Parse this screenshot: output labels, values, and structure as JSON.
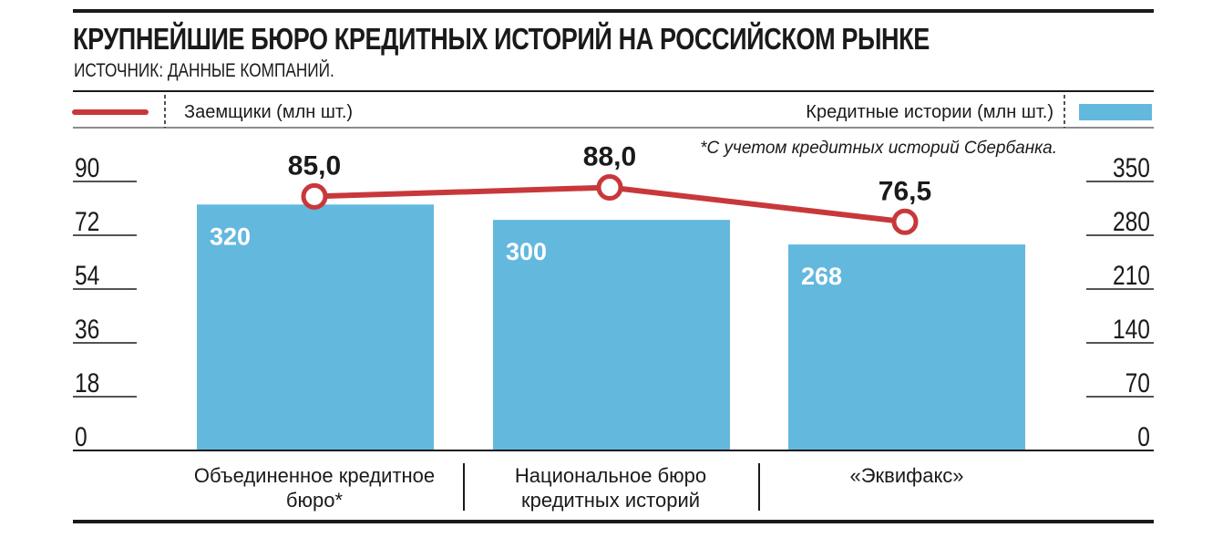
{
  "header": {
    "title": "КРУПНЕЙШИЕ БЮРО КРЕДИТНЫХ ИСТОРИЙ НА РОССИЙСКОМ РЫНКЕ",
    "subtitle": "ИСТОЧНИК: ДАННЫЕ КОМПАНИЙ."
  },
  "footnote": "*С учетом кредитных историй Сбербанка.",
  "colors": {
    "bar": "#63b8de",
    "line": "#c8383b",
    "ink": "#1a1a1a"
  },
  "chart_data": {
    "type": "bar",
    "categories": [
      "Объединенное кредитное бюро*",
      "Национальное бюро кредитных историй",
      "«Эквифакс»"
    ],
    "series": [
      {
        "name": "Кредитные истории (млн шт.)",
        "type": "bar",
        "axis": "right",
        "values": [
          320,
          300,
          268
        ],
        "labels": [
          "320",
          "300",
          "268"
        ]
      },
      {
        "name": "Заемщики (млн шт.)",
        "type": "line",
        "axis": "left",
        "values": [
          85.0,
          88.0,
          76.5
        ],
        "labels": [
          "85,0",
          "88,0",
          "76,5"
        ]
      }
    ],
    "y_left": {
      "range": [
        0,
        90
      ],
      "ticks": [
        0,
        18,
        36,
        54,
        72,
        90
      ]
    },
    "y_right": {
      "range": [
        0,
        350
      ],
      "ticks": [
        0,
        70,
        140,
        210,
        280,
        350
      ]
    },
    "legend": {
      "line_label": "Заемщики (млн шт.)",
      "bar_label": "Кредитные истории (млн шт.)",
      "placement": "top"
    },
    "grid": false
  }
}
